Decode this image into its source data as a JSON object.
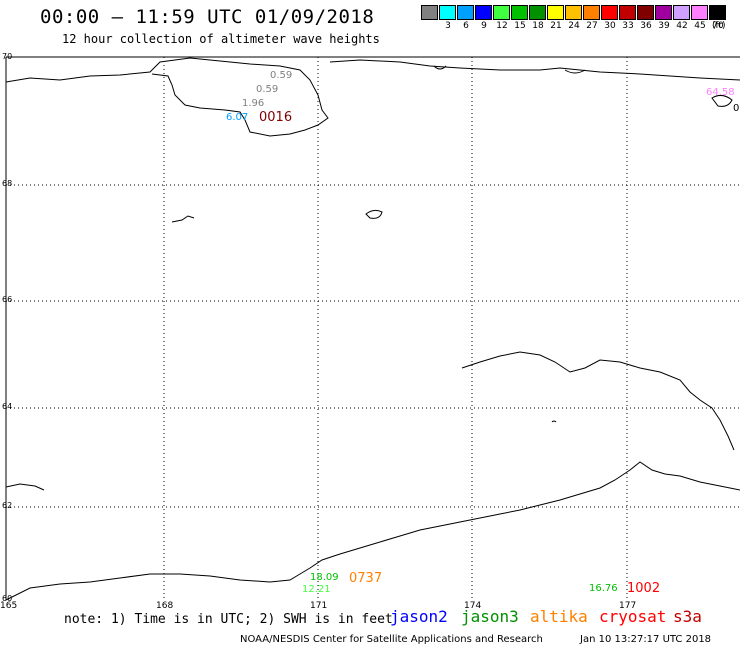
{
  "header": {
    "title": "00:00 – 11:59 UTC 01/09/2018",
    "subtitle": "12 hour collection of altimeter wave heights"
  },
  "legend": {
    "colors": [
      "#808080",
      "#00ffff",
      "#00a0ff",
      "#0000ff",
      "#40ff40",
      "#00c000",
      "#009000",
      "#ffff00",
      "#ffc000",
      "#ff8000",
      "#ff0000",
      "#c00000",
      "#800000",
      "#a000a0",
      "#d0a0ff",
      "#ff80ff",
      "#000000"
    ],
    "labels": [
      "",
      "3",
      "6",
      "9",
      "12",
      "15",
      "18",
      "21",
      "24",
      "27",
      "30",
      "33",
      "36",
      "39",
      "42",
      "45",
      "70"
    ],
    "unit": "(ft)"
  },
  "axes": {
    "latitudes": [
      "70",
      "68",
      "66",
      "64",
      "62",
      "60"
    ],
    "longitudes": [
      "165",
      "168",
      "171",
      "174",
      "177"
    ]
  },
  "observations": [
    {
      "text": "0.59",
      "color": "#808080"
    },
    {
      "text": "0.59",
      "color": "#808080"
    },
    {
      "text": "1.96",
      "color": "#808080"
    },
    {
      "text": "6.07",
      "color": "#00a0ff"
    },
    {
      "text": "0016",
      "color": "#800000"
    },
    {
      "text": "64.58",
      "color": "#ff80ff"
    },
    {
      "text": "0",
      "color": "#000000"
    },
    {
      "text": "18.09",
      "color": "#00c000"
    },
    {
      "text": "12.21",
      "color": "#40ff40"
    },
    {
      "text": "0737",
      "color": "#ff8000"
    },
    {
      "text": "16.76",
      "color": "#00c000"
    },
    {
      "text": "1002",
      "color": "#ff0000"
    }
  ],
  "footer": {
    "note": "note: 1) Time is in UTC; 2) SWH is in feet",
    "satellites": [
      {
        "name": "jason2",
        "color": "#0000ff"
      },
      {
        "name": "jason3",
        "color": "#009000"
      },
      {
        "name": "altika",
        "color": "#ff8000"
      },
      {
        "name": "cryosat",
        "color": "#ff0000"
      },
      {
        "name": "s3a",
        "color": "#c00000"
      }
    ],
    "credit": "NOAA/NESDIS Center for Satellite Applications and Research",
    "timestamp": "Jan 10 13:27:17 UTC 2018"
  }
}
